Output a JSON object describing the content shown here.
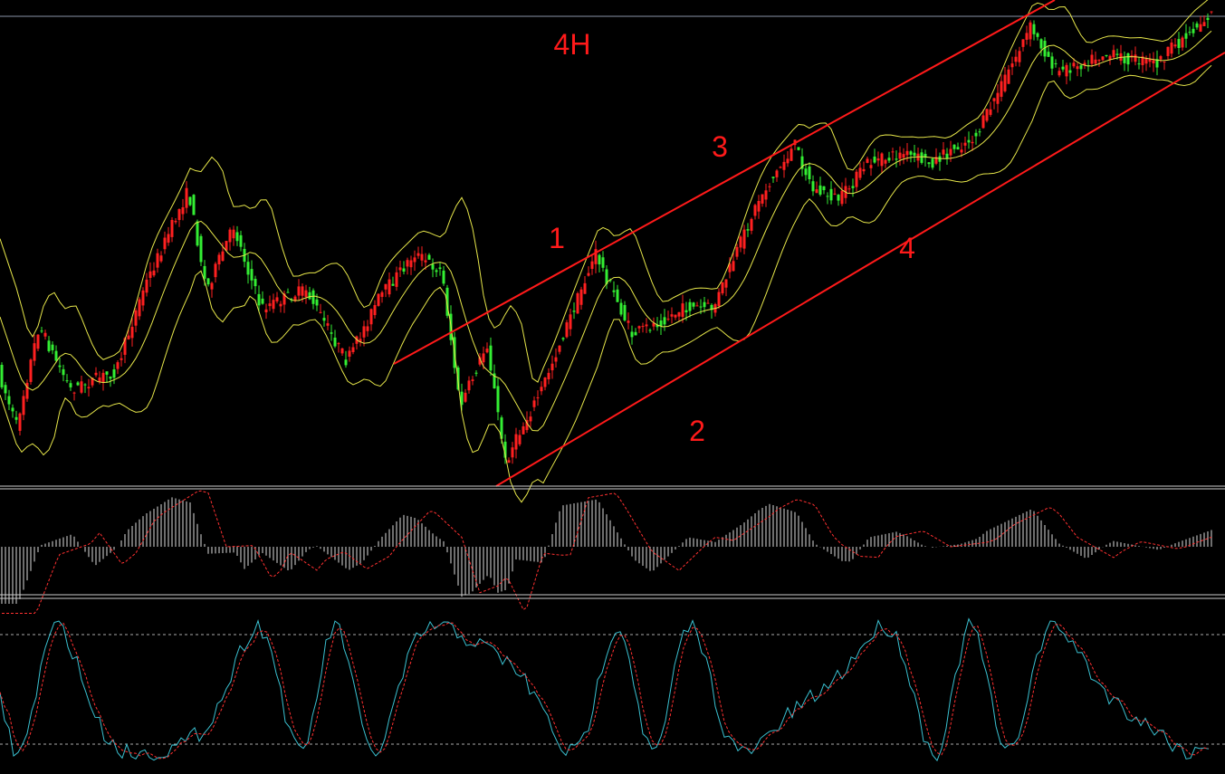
{
  "annotations": [
    "4H",
    "1",
    "3",
    "4",
    "2"
  ]
}
